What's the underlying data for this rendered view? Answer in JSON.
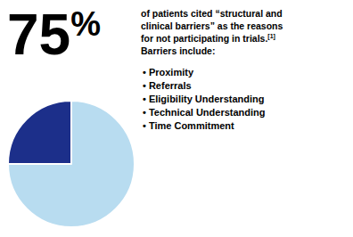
{
  "chart_data": {
    "type": "pie",
    "values": [
      75,
      25
    ],
    "colors": [
      "#b8dcf0",
      "#1c2f8a"
    ],
    "legend": false,
    "data_labels": false,
    "annotations": [
      "75",
      "%",
      "of patients cited “structural and",
      "clinical barriers” as the reasons",
      "for not participating in trials.",
      "[1]",
      "Barriers include:",
      "• Proximity",
      "• Referrals",
      "• Eligibility Understanding",
      "• Technical Understanding",
      "• Time Commitment"
    ]
  }
}
